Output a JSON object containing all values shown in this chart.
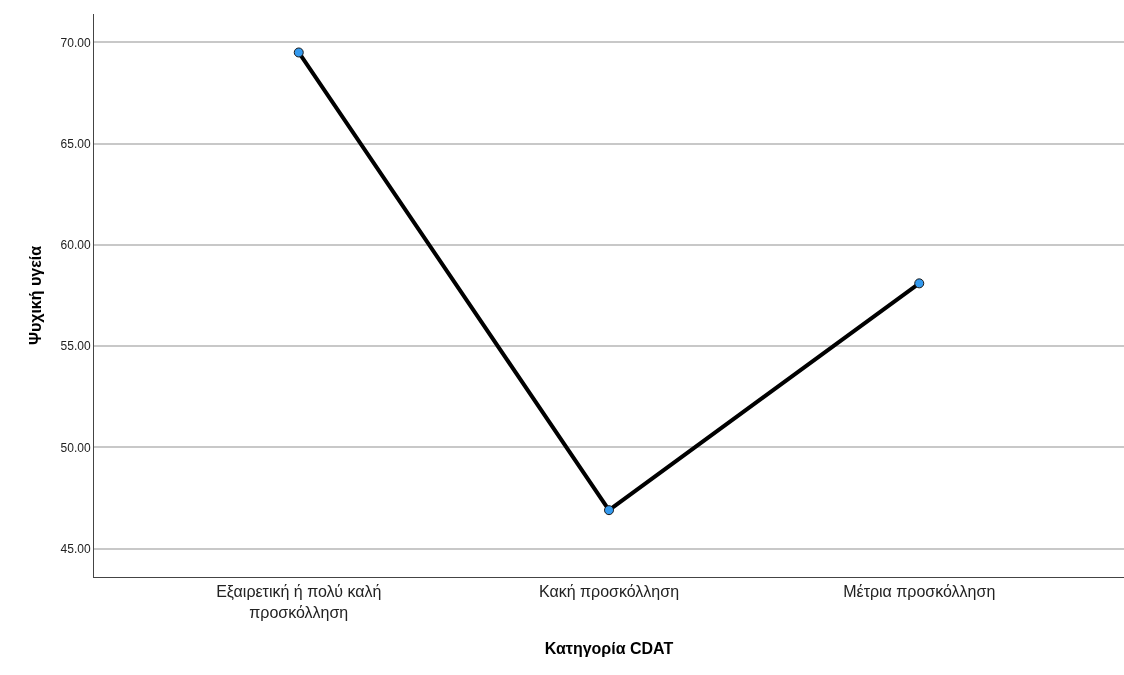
{
  "chart_data": {
    "type": "line",
    "xlabel": "Κατηγορία CDAT",
    "ylabel": "Ψυχική υγεία",
    "categories": [
      "Εξαιρετική ή πολύ καλή προσκόλληση",
      "Κακή προσκόλληση",
      "Μέτρια προσκόλληση"
    ],
    "series": [
      {
        "color": "#000000",
        "values": [
          69.5,
          46.9,
          58.1
        ]
      }
    ],
    "marker": "circle",
    "line_style": "solid",
    "grid": "y",
    "ylim": [
      43.6,
      71.4
    ],
    "yticks": [
      {
        "value": 45,
        "label": "45.00"
      },
      {
        "value": 50,
        "label": "50.00"
      },
      {
        "value": 55,
        "label": "55.00"
      },
      {
        "value": 60,
        "label": "60.00"
      },
      {
        "value": 65,
        "label": "65.00"
      },
      {
        "value": 70,
        "label": "70.00"
      }
    ]
  }
}
